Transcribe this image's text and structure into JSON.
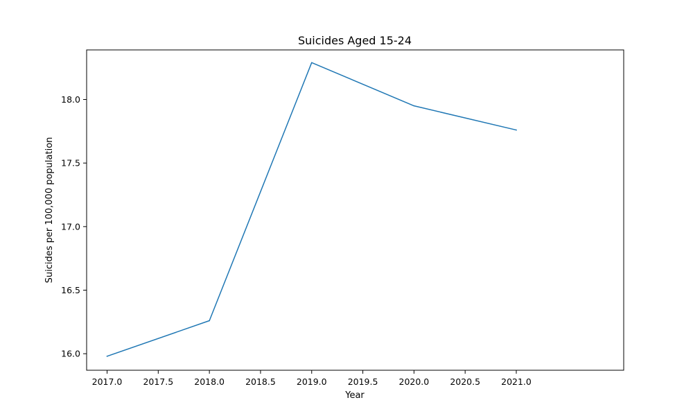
{
  "chart_data": {
    "type": "line",
    "title": "Suicides Aged 15-24",
    "xlabel": "Year",
    "ylabel": "Suicides per 100,000 population",
    "x": [
      2017,
      2018,
      2019,
      2020,
      2021
    ],
    "series": [
      {
        "values": [
          15.98,
          16.26,
          18.29,
          17.95,
          17.76
        ],
        "color": "#1f77b4"
      }
    ],
    "xlim": [
      2016.8,
      2022.05
    ],
    "ylim": [
      15.87,
      18.39
    ],
    "xticks": [
      2017.0,
      2017.5,
      2018.0,
      2018.5,
      2019.0,
      2019.5,
      2020.0,
      2020.5,
      2021.0
    ],
    "xtick_labels": [
      "2017.0",
      "2017.5",
      "2018.0",
      "2018.5",
      "2019.0",
      "2019.5",
      "2020.0",
      "2020.5",
      "2021.0"
    ],
    "yticks": [
      16.0,
      16.5,
      17.0,
      17.5,
      18.0
    ],
    "ytick_labels": [
      "16.0",
      "16.5",
      "17.0",
      "17.5",
      "18.0"
    ],
    "grid": false,
    "legend": "none"
  }
}
